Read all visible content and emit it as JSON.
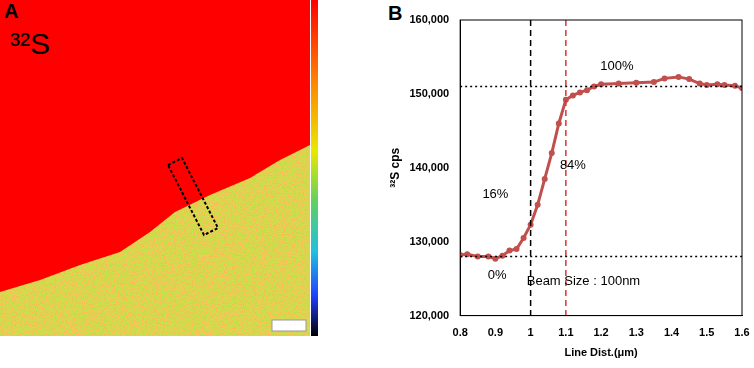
{
  "panel_a": {
    "label": "A",
    "title": "³²S"
  },
  "chart_data": {
    "panel_label": "B",
    "type": "line",
    "x_label": "Line Dist.(μm)",
    "y_label": "³²S cps",
    "color": "#c0504d",
    "marker": "circle",
    "line_style": "solid",
    "x": [
      0.8,
      0.82,
      0.85,
      0.88,
      0.9,
      0.92,
      0.94,
      0.96,
      0.98,
      1.0,
      1.02,
      1.04,
      1.06,
      1.08,
      1.1,
      1.12,
      1.14,
      1.16,
      1.18,
      1.2,
      1.25,
      1.3,
      1.35,
      1.38,
      1.42,
      1.45,
      1.48,
      1.5,
      1.53,
      1.55,
      1.58,
      1.6
    ],
    "values": [
      128200,
      128300,
      128000,
      128000,
      127700,
      128100,
      128800,
      129000,
      130500,
      132300,
      135000,
      138500,
      142000,
      146000,
      149200,
      149800,
      150200,
      150500,
      151000,
      151300,
      151400,
      151500,
      151600,
      152100,
      152300,
      152000,
      151400,
      151200,
      151300,
      151200,
      151100,
      150800
    ],
    "xlim": [
      0.8,
      1.6
    ],
    "xticks": [
      0.8,
      0.9,
      1,
      1.1,
      1.2,
      1.3,
      1.4,
      1.5,
      1.6
    ],
    "ylim": [
      120000,
      160000
    ],
    "yticks": [
      {
        "value": 120000,
        "label": "120,000"
      },
      {
        "value": 130000,
        "label": "130,000"
      },
      {
        "value": 140000,
        "label": "140,000"
      },
      {
        "value": 150000,
        "label": "150,000"
      },
      {
        "value": 160000,
        "label": "160,000"
      }
    ],
    "grid": false,
    "reference_lines": [
      {
        "axis": "x",
        "value": 1.0,
        "color": "#000000",
        "line_style": "dashed"
      },
      {
        "axis": "x",
        "value": 1.1,
        "color": "#e03030",
        "line_style": "dashed"
      },
      {
        "axis": "y",
        "value": 128000,
        "color": "#000000",
        "line_style": "dotted"
      },
      {
        "axis": "y",
        "value": 151000,
        "color": "#000000",
        "line_style": "dotted"
      }
    ],
    "annotations": [
      {
        "text": "0%",
        "x": 0.905,
        "y": 125500
      },
      {
        "text": "16%",
        "x": 0.9,
        "y": 136400
      },
      {
        "text": "84%",
        "x": 1.12,
        "y": 140300
      },
      {
        "text": "100%",
        "x": 1.245,
        "y": 153700
      },
      {
        "text": "Beam Size : 100nm",
        "x": 1.15,
        "y": 124600
      }
    ]
  }
}
